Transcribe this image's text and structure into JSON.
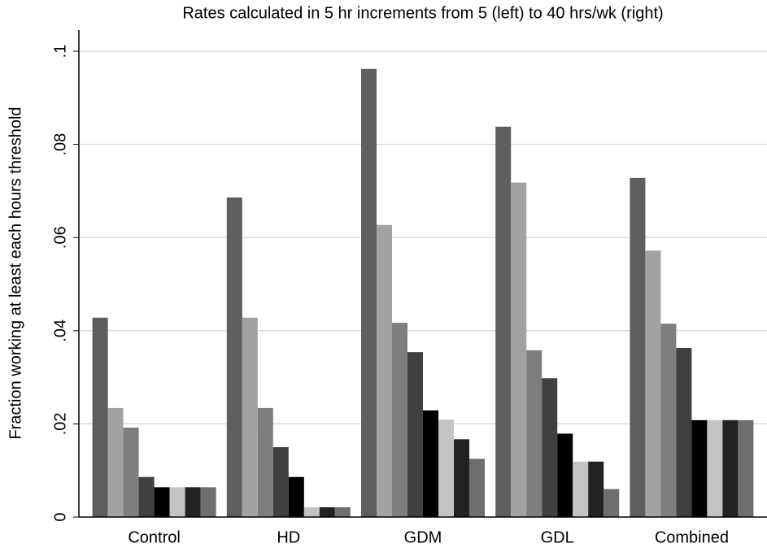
{
  "chart_data": {
    "type": "bar",
    "title": "Rates calculated in 5 hr increments from 5 (left) to 40 hrs/wk (right)",
    "y_label": "Fraction working at least each hours threshold",
    "categories": [
      "Control",
      "HD",
      "GDM",
      "GDL",
      "Combined"
    ],
    "series": [
      {
        "color": "#5e5e5e",
        "values": [
          0.0428,
          0.0686,
          0.0962,
          0.0838,
          0.0728
        ]
      },
      {
        "color": "#a2a2a2",
        "values": [
          0.0234,
          0.0428,
          0.0627,
          0.0718,
          0.0572
        ]
      },
      {
        "color": "#7e7e7e",
        "values": [
          0.0192,
          0.0234,
          0.0417,
          0.0358,
          0.0415
        ]
      },
      {
        "color": "#404040",
        "values": [
          0.0086,
          0.015,
          0.0354,
          0.0298,
          0.0363
        ]
      },
      {
        "color": "#000000",
        "values": [
          0.0064,
          0.0086,
          0.0229,
          0.0179,
          0.0208
        ]
      },
      {
        "color": "#c4c4c4",
        "values": [
          0.0064,
          0.0021,
          0.0209,
          0.0119,
          0.0208
        ]
      },
      {
        "color": "#222222",
        "values": [
          0.0064,
          0.0021,
          0.0167,
          0.0119,
          0.0208
        ]
      },
      {
        "color": "#6e6e6e",
        "values": [
          0.0064,
          0.0021,
          0.0125,
          0.006,
          0.0208
        ]
      }
    ],
    "ylim": [
      0,
      0.1
    ],
    "yticks": [
      0,
      {
        "value": 0.02,
        "label": ".02"
      },
      {
        "value": 0.04,
        "label": ".04"
      },
      {
        "value": 0.06,
        "label": ".06"
      },
      {
        "value": 0.08,
        "label": ".08"
      },
      {
        "value": 0.1,
        "label": ".1"
      }
    ],
    "grid": true
  }
}
